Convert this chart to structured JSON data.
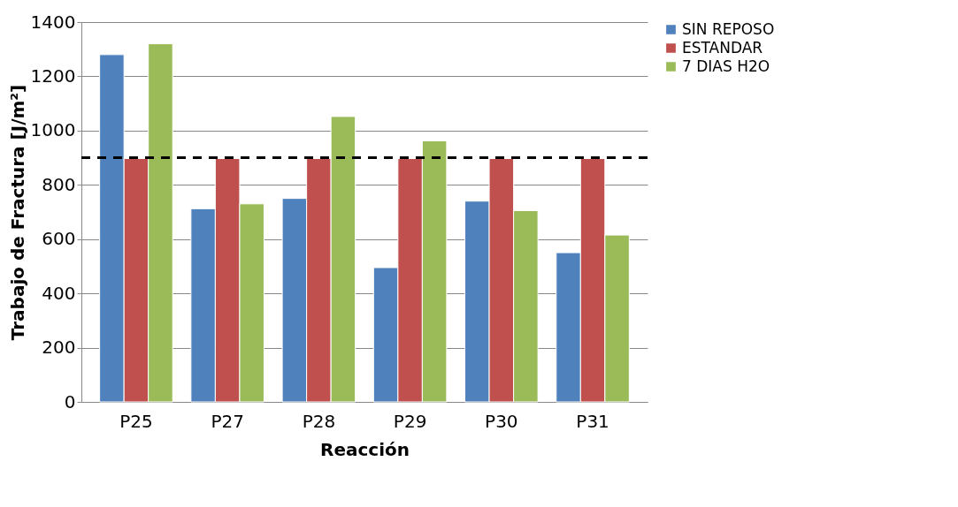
{
  "chart_data": {
    "type": "bar",
    "xlabel": "Reacción",
    "ylabel": "Trabajo de Fractura [J/m²]",
    "categories": [
      "P25",
      "P27",
      "P28",
      "P29",
      "P30",
      "P31"
    ],
    "series": [
      {
        "name": "SIN REPOSO",
        "color": "#4f81bd",
        "values": [
          1280,
          712,
          750,
          495,
          740,
          550
        ]
      },
      {
        "name": "ESTANDAR",
        "color": "#c0504d",
        "values": [
          897,
          897,
          897,
          897,
          897,
          897
        ]
      },
      {
        "name": "7 DIAS H2O",
        "color": "#9bbb59",
        "values": [
          1320,
          730,
          1052,
          962,
          705,
          615
        ]
      }
    ],
    "ylim": [
      0,
      1400
    ],
    "yticks": [
      0,
      200,
      400,
      600,
      800,
      1000,
      1200,
      1400
    ],
    "grid": "y",
    "legend": "right",
    "ref_lines": [
      {
        "axis": "y",
        "value": 900,
        "color": "#000000",
        "line_style": "dashed"
      }
    ]
  }
}
